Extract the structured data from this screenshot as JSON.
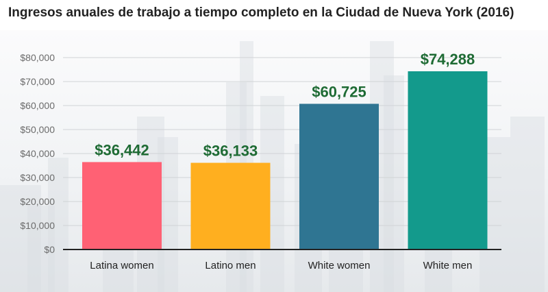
{
  "chart_data": {
    "type": "bar",
    "title": "Ingresos anuales de trabajo a tiempo completo en la Ciudad de Nueva York (2016)",
    "categories": [
      "Latina women",
      "Latino men",
      "White women",
      "White men"
    ],
    "values": [
      36442,
      36133,
      60725,
      74288
    ],
    "data_labels": [
      "$36,442",
      "$36,133",
      "$60,725",
      "$74,288"
    ],
    "colors": [
      "#ff6174",
      "#ffaf1f",
      "#2f7592",
      "#139a8c"
    ],
    "ylim": [
      0,
      80000
    ],
    "yticks": [
      0,
      10000,
      20000,
      30000,
      40000,
      50000,
      60000,
      70000,
      80000
    ],
    "ytick_labels": [
      "$0",
      "$10,000",
      "$20,000",
      "$30,000",
      "$40,000",
      "$50,000",
      "$60,000",
      "$70,000",
      "$80,000"
    ],
    "grid": true,
    "xlabel": "",
    "ylabel": ""
  }
}
